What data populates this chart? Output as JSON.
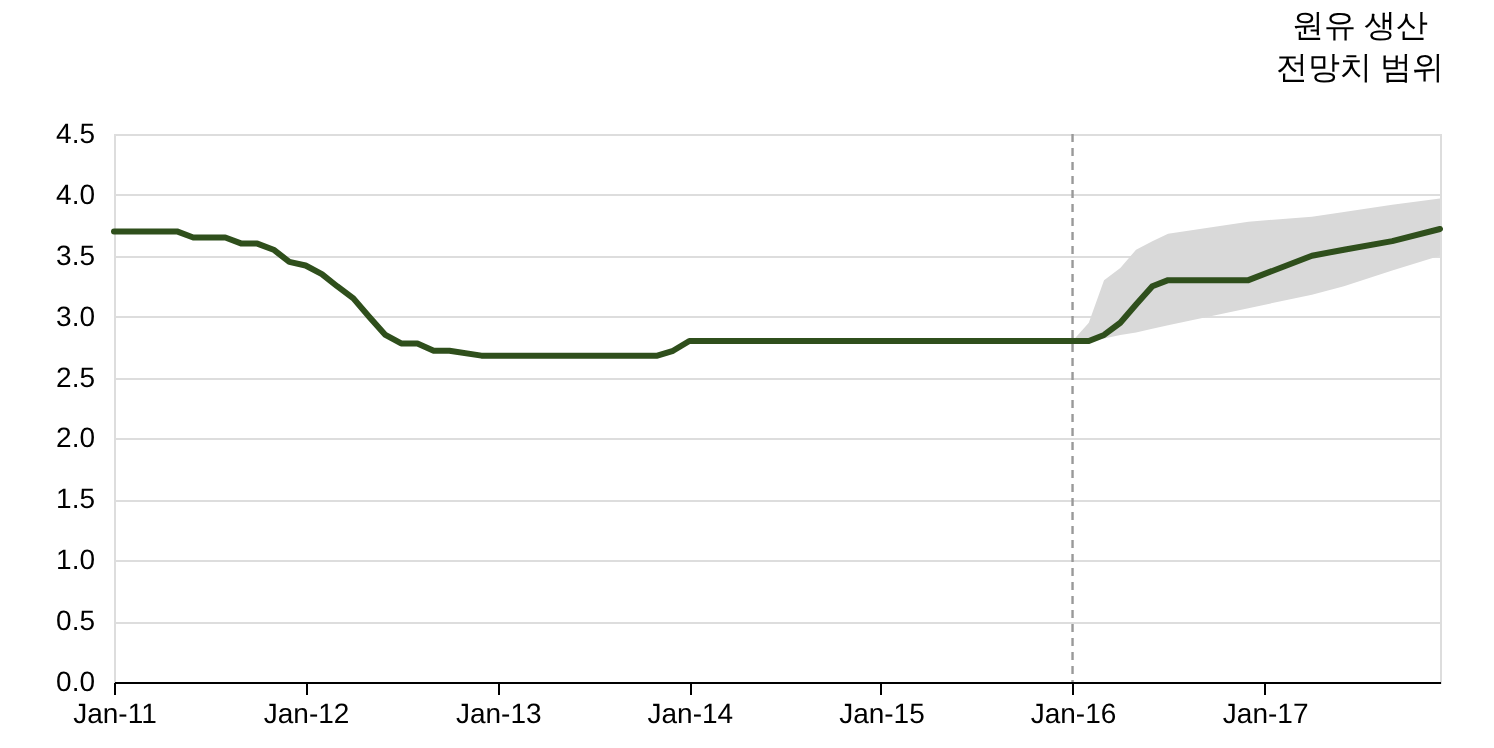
{
  "chart_data": {
    "type": "line",
    "x": [
      "2011-01",
      "2011-05",
      "2011-06",
      "2011-08",
      "2011-09",
      "2011-10",
      "2011-11",
      "2011-12",
      "2012-01",
      "2012-02",
      "2012-03",
      "2012-04",
      "2012-05",
      "2012-06",
      "2012-07",
      "2012-08",
      "2012-09",
      "2012-10",
      "2012-12",
      "2013-11",
      "2013-12",
      "2014-01",
      "2016-01",
      "2016-02",
      "2016-03",
      "2016-04",
      "2016-05",
      "2016-06",
      "2016-07",
      "2016-12",
      "2017-04",
      "2017-06",
      "2017-09",
      "2017-12"
    ],
    "series": [
      {
        "color": "#2f4f1c",
        "values": [
          3.7,
          3.7,
          3.65,
          3.65,
          3.6,
          3.6,
          3.55,
          3.45,
          3.42,
          3.35,
          3.25,
          3.15,
          3.0,
          2.85,
          2.78,
          2.78,
          2.72,
          2.72,
          2.68,
          2.68,
          2.72,
          2.8,
          2.8,
          2.8,
          2.85,
          2.95,
          3.1,
          3.25,
          3.3,
          3.3,
          3.5,
          3.55,
          3.62,
          3.72
        ],
        "lower": [
          null,
          null,
          null,
          null,
          null,
          null,
          null,
          null,
          null,
          null,
          null,
          null,
          null,
          null,
          null,
          null,
          null,
          null,
          null,
          null,
          null,
          null,
          2.8,
          2.8,
          2.82,
          2.85,
          2.87,
          2.9,
          2.93,
          3.07,
          3.18,
          3.25,
          3.38,
          3.5
        ],
        "upper": [
          null,
          null,
          null,
          null,
          null,
          null,
          null,
          null,
          null,
          null,
          null,
          null,
          null,
          null,
          null,
          null,
          null,
          null,
          null,
          null,
          null,
          null,
          2.8,
          2.95,
          3.3,
          3.4,
          3.55,
          3.62,
          3.68,
          3.78,
          3.82,
          3.86,
          3.92,
          3.97
        ]
      }
    ],
    "xlim": [
      "2011-01",
      "2017-12"
    ],
    "xticks": [
      {
        "value": "2011-01",
        "label": "Jan-11"
      },
      {
        "value": "2012-01",
        "label": "Jan-12"
      },
      {
        "value": "2013-01",
        "label": "Jan-13"
      },
      {
        "value": "2014-01",
        "label": "Jan-14"
      },
      {
        "value": "2015-01",
        "label": "Jan-15"
      },
      {
        "value": "2016-01",
        "label": "Jan-16"
      },
      {
        "value": "2017-01",
        "label": "Jan-17"
      }
    ],
    "ylim": [
      0,
      4.5
    ],
    "yticks": [
      {
        "value": 0,
        "label": "0.0"
      },
      0.5,
      {
        "value": 1,
        "label": "1.0"
      },
      1.5,
      {
        "value": 2,
        "label": "2.0"
      },
      2.5,
      {
        "value": 3,
        "label": "3.0"
      },
      3.5,
      {
        "value": 4,
        "label": "4.0"
      },
      4.5
    ],
    "ref_lines": [
      {
        "axis": "x",
        "value": "2016-01",
        "color": "#999999",
        "line_style": "dashed"
      }
    ],
    "annotations": [
      "원유 생산\n전망치 범위"
    ],
    "grid": "y",
    "line_style": "solid",
    "marker": "none"
  }
}
